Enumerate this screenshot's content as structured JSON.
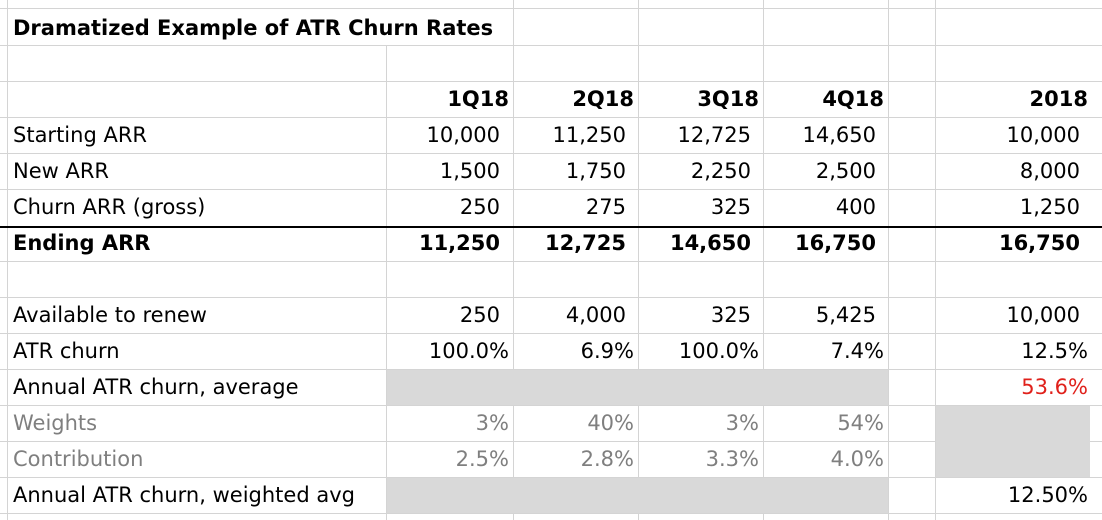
{
  "title": "Dramatized Example of ATR Churn Rates",
  "headers": [
    "1Q18",
    "2Q18",
    "3Q18",
    "4Q18",
    "2018"
  ],
  "rows": [
    {
      "label": "Starting ARR",
      "values": [
        "10,000",
        "11,250",
        "12,725",
        "14,650",
        "10,000"
      ]
    },
    {
      "label": "New ARR",
      "values": [
        "1,500",
        "1,750",
        "2,250",
        "2,500",
        "8,000"
      ]
    },
    {
      "label": "Churn ARR (gross)",
      "values": [
        "250",
        "275",
        "325",
        "400",
        "1,250"
      ]
    },
    {
      "label": "Ending ARR",
      "values": [
        "11,250",
        "12,725",
        "14,650",
        "16,750",
        "16,750"
      ]
    },
    {
      "label": "Available to renew",
      "values": [
        "250",
        "4,000",
        "325",
        "5,425",
        "10,000"
      ]
    },
    {
      "label": "ATR churn",
      "values": [
        "100.0%",
        "6.9%",
        "100.0%",
        "7.4%",
        "12.5%"
      ]
    },
    {
      "label": "Annual ATR churn, average",
      "values": [
        "",
        "",
        "",
        "",
        "53.6%"
      ]
    },
    {
      "label": "Weights",
      "values": [
        "3%",
        "40%",
        "3%",
        "54%",
        ""
      ]
    },
    {
      "label": "Contribution",
      "values": [
        "2.5%",
        "2.8%",
        "3.3%",
        "4.0%",
        ""
      ]
    },
    {
      "label": "Annual ATR churn, weighted avg",
      "values": [
        "",
        "",
        "",
        "",
        "12.50%"
      ]
    }
  ],
  "colors": {
    "highlight_red": "#e0211b",
    "muted_gray": "#7f7f7f",
    "shade": "#d9d9d9"
  }
}
